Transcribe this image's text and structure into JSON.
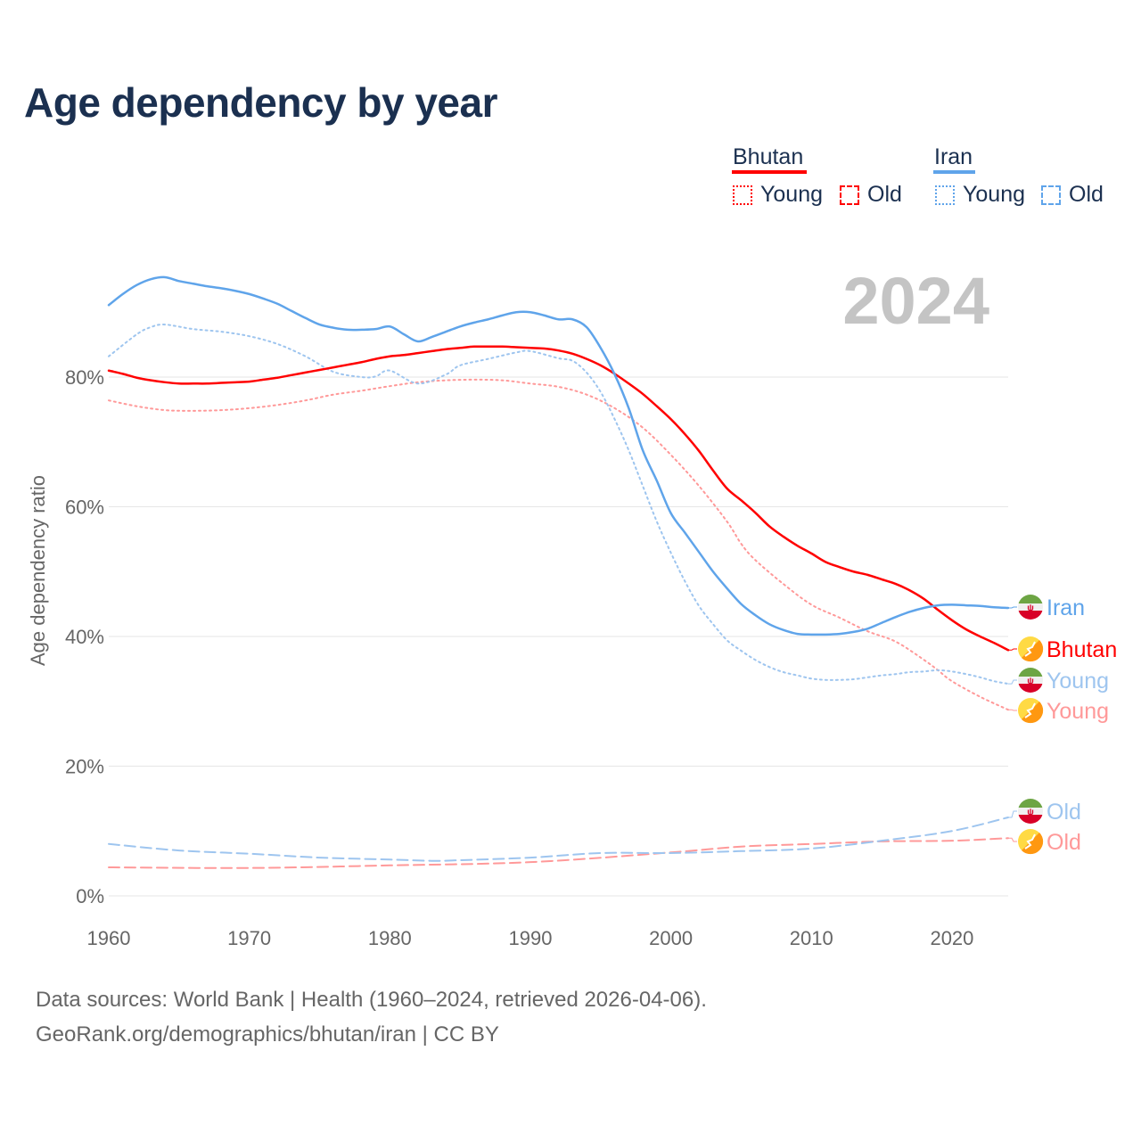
{
  "title": "Age dependency by year",
  "legend": {
    "countries": [
      {
        "name": "Bhutan",
        "color": "#ff0000",
        "light": "#ff9999",
        "young_label": "Young",
        "old_label": "Old"
      },
      {
        "name": "Iran",
        "color": "#5fa4ea",
        "light": "#9ec5ef",
        "young_label": "Young",
        "old_label": "Old"
      }
    ]
  },
  "year_watermark": "2024",
  "footer": {
    "line1": "Data sources: World Bank | Health (1960–2024, retrieved 2026-04-06).",
    "line2": "GeoRank.org/demographics/bhutan/iran | CC BY"
  },
  "chart_data": {
    "type": "line",
    "title": "Age dependency by year",
    "xlabel": "",
    "ylabel": "Age dependency ratio",
    "xlim": [
      1960,
      2024
    ],
    "ylim": [
      0,
      100
    ],
    "x_ticks": [
      "1960",
      "1970",
      "1980",
      "1990",
      "2000",
      "2010",
      "2020"
    ],
    "y_ticks": [
      "0%",
      "20%",
      "40%",
      "60%",
      "80%"
    ],
    "grid": true,
    "legend_position": "top-right",
    "series": [
      {
        "name": "Iran",
        "label": "Iran",
        "style": "solid",
        "color": "#5fa4ea",
        "points": [
          [
            1960,
            91.1
          ],
          [
            1961,
            92.8
          ],
          [
            1962,
            94.2
          ],
          [
            1963,
            95.1
          ],
          [
            1964,
            95.4
          ],
          [
            1965,
            94.8
          ],
          [
            1966,
            94.4
          ],
          [
            1967,
            94.0
          ],
          [
            1968,
            93.7
          ],
          [
            1969,
            93.3
          ],
          [
            1970,
            92.8
          ],
          [
            1971,
            92.1
          ],
          [
            1972,
            91.3
          ],
          [
            1973,
            90.2
          ],
          [
            1974,
            89.1
          ],
          [
            1975,
            88.1
          ],
          [
            1976,
            87.6
          ],
          [
            1977,
            87.3
          ],
          [
            1978,
            87.3
          ],
          [
            1979,
            87.4
          ],
          [
            1980,
            87.8
          ],
          [
            1981,
            86.6
          ],
          [
            1982,
            85.5
          ],
          [
            1983,
            86.2
          ],
          [
            1984,
            87.0
          ],
          [
            1985,
            87.8
          ],
          [
            1986,
            88.4
          ],
          [
            1987,
            88.9
          ],
          [
            1988,
            89.5
          ],
          [
            1989,
            90.0
          ],
          [
            1990,
            90.0
          ],
          [
            1991,
            89.5
          ],
          [
            1992,
            88.9
          ],
          [
            1993,
            88.9
          ],
          [
            1994,
            87.7
          ],
          [
            1995,
            84.5
          ],
          [
            1996,
            80.4
          ],
          [
            1997,
            75.2
          ],
          [
            1998,
            68.7
          ],
          [
            1999,
            64.0
          ],
          [
            2000,
            59.0
          ],
          [
            2001,
            56.0
          ],
          [
            2002,
            53.0
          ],
          [
            2003,
            50.0
          ],
          [
            2004,
            47.4
          ],
          [
            2005,
            45.0
          ],
          [
            2006,
            43.3
          ],
          [
            2007,
            41.9
          ],
          [
            2008,
            41.0
          ],
          [
            2009,
            40.4
          ],
          [
            2010,
            40.3
          ],
          [
            2011,
            40.3
          ],
          [
            2012,
            40.4
          ],
          [
            2013,
            40.7
          ],
          [
            2014,
            41.2
          ],
          [
            2015,
            42.1
          ],
          [
            2016,
            43.0
          ],
          [
            2017,
            43.8
          ],
          [
            2018,
            44.4
          ],
          [
            2019,
            44.8
          ],
          [
            2020,
            44.9
          ],
          [
            2021,
            44.8
          ],
          [
            2022,
            44.7
          ],
          [
            2023,
            44.5
          ],
          [
            2024,
            44.4
          ]
        ]
      },
      {
        "name": "Bhutan",
        "label": "Bhutan",
        "style": "solid",
        "color": "#ff0000",
        "points": [
          [
            1960,
            81.0
          ],
          [
            1961,
            80.5
          ],
          [
            1962,
            79.9
          ],
          [
            1963,
            79.5
          ],
          [
            1964,
            79.2
          ],
          [
            1965,
            79.0
          ],
          [
            1966,
            79.0
          ],
          [
            1967,
            79.0
          ],
          [
            1968,
            79.1
          ],
          [
            1969,
            79.2
          ],
          [
            1970,
            79.3
          ],
          [
            1971,
            79.6
          ],
          [
            1972,
            79.9
          ],
          [
            1973,
            80.3
          ],
          [
            1974,
            80.7
          ],
          [
            1975,
            81.1
          ],
          [
            1976,
            81.5
          ],
          [
            1977,
            81.9
          ],
          [
            1978,
            82.3
          ],
          [
            1979,
            82.8
          ],
          [
            1980,
            83.2
          ],
          [
            1981,
            83.4
          ],
          [
            1982,
            83.7
          ],
          [
            1983,
            84.0
          ],
          [
            1984,
            84.3
          ],
          [
            1985,
            84.5
          ],
          [
            1986,
            84.7
          ],
          [
            1987,
            84.7
          ],
          [
            1988,
            84.7
          ],
          [
            1989,
            84.6
          ],
          [
            1990,
            84.5
          ],
          [
            1991,
            84.4
          ],
          [
            1992,
            84.1
          ],
          [
            1993,
            83.6
          ],
          [
            1994,
            82.8
          ],
          [
            1995,
            81.8
          ],
          [
            1996,
            80.5
          ],
          [
            1997,
            79.0
          ],
          [
            1998,
            77.4
          ],
          [
            1999,
            75.5
          ],
          [
            2000,
            73.5
          ],
          [
            2001,
            71.2
          ],
          [
            2002,
            68.6
          ],
          [
            2003,
            65.6
          ],
          [
            2004,
            62.8
          ],
          [
            2005,
            61.0
          ],
          [
            2006,
            59.1
          ],
          [
            2007,
            57.0
          ],
          [
            2008,
            55.4
          ],
          [
            2009,
            54.0
          ],
          [
            2010,
            52.8
          ],
          [
            2011,
            51.5
          ],
          [
            2012,
            50.7
          ],
          [
            2013,
            50.0
          ],
          [
            2014,
            49.5
          ],
          [
            2015,
            48.8
          ],
          [
            2016,
            48.1
          ],
          [
            2017,
            47.1
          ],
          [
            2018,
            45.8
          ],
          [
            2019,
            44.1
          ],
          [
            2020,
            42.5
          ],
          [
            2021,
            41.1
          ],
          [
            2022,
            40.0
          ],
          [
            2023,
            39.0
          ],
          [
            2024,
            37.9
          ]
        ]
      },
      {
        "name": "Iran Young",
        "label": "Young",
        "style": "dotted",
        "color": "#9ec5ef",
        "points": [
          [
            1960,
            83.2
          ],
          [
            1962,
            86.6
          ],
          [
            1963,
            87.7
          ],
          [
            1964,
            88.1
          ],
          [
            1966,
            87.4
          ],
          [
            1968,
            87.0
          ],
          [
            1970,
            86.3
          ],
          [
            1972,
            85.1
          ],
          [
            1974,
            83.2
          ],
          [
            1976,
            80.8
          ],
          [
            1978,
            80.0
          ],
          [
            1979,
            80.1
          ],
          [
            1980,
            81.0
          ],
          [
            1982,
            79.0
          ],
          [
            1984,
            80.4
          ],
          [
            1985,
            81.8
          ],
          [
            1987,
            82.8
          ],
          [
            1989,
            83.8
          ],
          [
            1990,
            84.0
          ],
          [
            1992,
            82.9
          ],
          [
            1993,
            82.5
          ],
          [
            1994,
            80.7
          ],
          [
            1995,
            77.7
          ],
          [
            1996,
            73.5
          ],
          [
            1997,
            68.7
          ],
          [
            1998,
            63.2
          ],
          [
            1999,
            57.7
          ],
          [
            2000,
            52.9
          ],
          [
            2001,
            48.5
          ],
          [
            2002,
            44.7
          ],
          [
            2003,
            41.9
          ],
          [
            2004,
            39.4
          ],
          [
            2005,
            37.8
          ],
          [
            2006,
            36.4
          ],
          [
            2007,
            35.3
          ],
          [
            2008,
            34.5
          ],
          [
            2009,
            34.0
          ],
          [
            2010,
            33.5
          ],
          [
            2011,
            33.3
          ],
          [
            2012,
            33.3
          ],
          [
            2013,
            33.4
          ],
          [
            2014,
            33.7
          ],
          [
            2015,
            34.0
          ],
          [
            2016,
            34.2
          ],
          [
            2017,
            34.5
          ],
          [
            2018,
            34.6
          ],
          [
            2019,
            34.8
          ],
          [
            2020,
            34.6
          ],
          [
            2021,
            34.2
          ],
          [
            2022,
            33.7
          ],
          [
            2023,
            33.1
          ],
          [
            2024,
            32.7
          ]
        ]
      },
      {
        "name": "Bhutan Young",
        "label": "Young",
        "style": "dotted",
        "color": "#ff9999",
        "points": [
          [
            1960,
            76.4
          ],
          [
            1962,
            75.5
          ],
          [
            1964,
            74.9
          ],
          [
            1966,
            74.8
          ],
          [
            1968,
            74.9
          ],
          [
            1970,
            75.2
          ],
          [
            1972,
            75.7
          ],
          [
            1974,
            76.4
          ],
          [
            1976,
            77.3
          ],
          [
            1978,
            77.9
          ],
          [
            1980,
            78.6
          ],
          [
            1982,
            79.2
          ],
          [
            1984,
            79.5
          ],
          [
            1986,
            79.6
          ],
          [
            1988,
            79.5
          ],
          [
            1990,
            79.0
          ],
          [
            1992,
            78.5
          ],
          [
            1994,
            77.3
          ],
          [
            1996,
            75.2
          ],
          [
            1998,
            72.2
          ],
          [
            2000,
            68.0
          ],
          [
            2002,
            63.2
          ],
          [
            2004,
            57.7
          ],
          [
            2005,
            54.3
          ],
          [
            2006,
            51.8
          ],
          [
            2008,
            48.1
          ],
          [
            2010,
            44.9
          ],
          [
            2012,
            42.9
          ],
          [
            2014,
            40.8
          ],
          [
            2016,
            39.2
          ],
          [
            2018,
            36.4
          ],
          [
            2019,
            34.8
          ],
          [
            2020,
            33.1
          ],
          [
            2022,
            30.7
          ],
          [
            2024,
            28.7
          ]
        ]
      },
      {
        "name": "Iran Old",
        "label": "Old",
        "style": "dashed",
        "color": "#9ec5ef",
        "points": [
          [
            1960,
            8.0
          ],
          [
            1965,
            7.0
          ],
          [
            1970,
            6.5
          ],
          [
            1975,
            5.9
          ],
          [
            1980,
            5.6
          ],
          [
            1983,
            5.4
          ],
          [
            1985,
            5.5
          ],
          [
            1990,
            5.9
          ],
          [
            1995,
            6.6
          ],
          [
            2000,
            6.6
          ],
          [
            2005,
            6.9
          ],
          [
            2010,
            7.3
          ],
          [
            2015,
            8.5
          ],
          [
            2020,
            10.0
          ],
          [
            2024,
            12.1
          ]
        ]
      },
      {
        "name": "Bhutan Old",
        "label": "Old",
        "style": "dashed",
        "color": "#ff9999",
        "points": [
          [
            1960,
            4.4
          ],
          [
            1970,
            4.3
          ],
          [
            1980,
            4.7
          ],
          [
            1990,
            5.2
          ],
          [
            2000,
            6.7
          ],
          [
            2005,
            7.6
          ],
          [
            2010,
            8.0
          ],
          [
            2015,
            8.4
          ],
          [
            2020,
            8.5
          ],
          [
            2024,
            8.9
          ]
        ]
      }
    ]
  }
}
